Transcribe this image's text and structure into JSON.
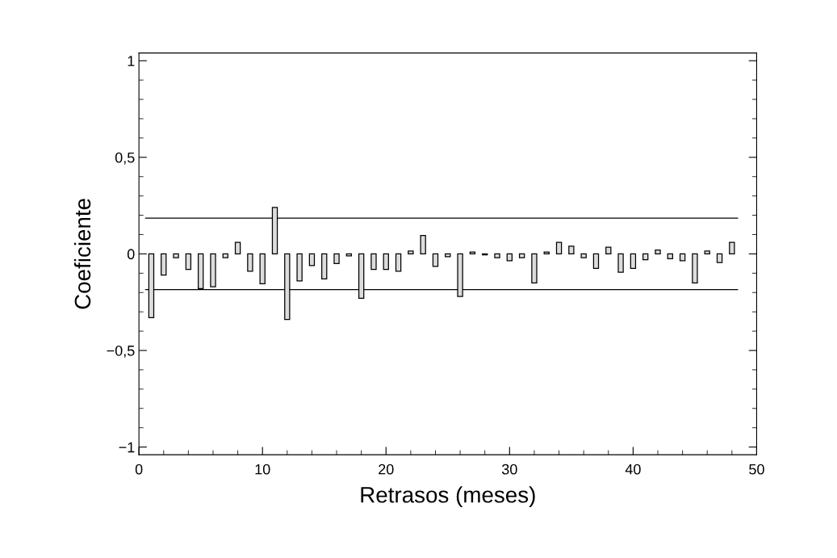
{
  "chart_data": {
    "type": "bar",
    "xlabel": "Retrasos (meses)",
    "ylabel": "Coeficiente",
    "x": [
      1,
      2,
      3,
      4,
      5,
      6,
      7,
      8,
      9,
      10,
      11,
      12,
      13,
      14,
      15,
      16,
      17,
      18,
      19,
      20,
      21,
      22,
      23,
      24,
      25,
      26,
      27,
      28,
      29,
      30,
      31,
      32,
      33,
      34,
      35,
      36,
      37,
      38,
      39,
      40,
      41,
      42,
      43,
      44,
      45,
      46,
      47,
      48
    ],
    "values": [
      -0.33,
      -0.11,
      -0.02,
      -0.08,
      -0.18,
      -0.17,
      -0.02,
      0.06,
      -0.09,
      -0.155,
      0.24,
      -0.34,
      -0.14,
      -0.06,
      -0.13,
      -0.05,
      -0.01,
      -0.23,
      -0.08,
      -0.08,
      -0.09,
      0.015,
      0.095,
      -0.065,
      -0.015,
      -0.22,
      0.01,
      -0.005,
      -0.02,
      -0.035,
      -0.02,
      -0.15,
      0.01,
      0.06,
      0.04,
      -0.02,
      -0.075,
      0.035,
      -0.095,
      -0.075,
      -0.03,
      0.02,
      -0.025,
      -0.035,
      -0.15,
      0.015,
      -0.045,
      0.06
    ],
    "color": "#dcdcdc",
    "xlim": [
      0,
      50
    ],
    "xticks": [
      0,
      10,
      20,
      30,
      40,
      50
    ],
    "ylim": [
      -1.04,
      1.04
    ],
    "yticks": [
      {
        "value": -1,
        "label": "−1"
      },
      {
        "value": -0.5,
        "label": "−0,5"
      },
      0,
      {
        "value": 0.5,
        "label": "0,5"
      },
      1
    ],
    "ref_lines": [
      {
        "axis": "y",
        "value": 0.185,
        "color": "#000000"
      },
      {
        "axis": "y",
        "value": -0.185,
        "color": "#000000"
      }
    ],
    "grid": false,
    "legend": false
  }
}
